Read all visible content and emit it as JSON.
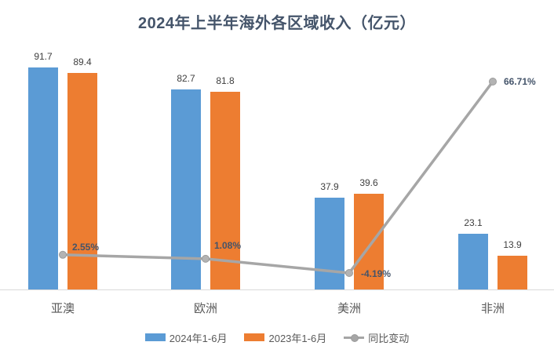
{
  "title": "2024年上半年海外各区域收入（亿元）",
  "chart_data": {
    "type": "bar",
    "subtype": "grouped-bars-with-line",
    "title": "2024年上半年海外各区域收入（亿元）",
    "categories": [
      "亚澳",
      "欧洲",
      "美洲",
      "非洲"
    ],
    "series": [
      {
        "name": "2024年1-6月",
        "type": "bar",
        "color": "#5B9BD5",
        "values": [
          91.7,
          82.7,
          37.9,
          23.1
        ]
      },
      {
        "name": "2023年1-6月",
        "type": "bar",
        "color": "#ED7D31",
        "values": [
          89.4,
          81.8,
          39.6,
          13.9
        ]
      },
      {
        "name": "同比变动",
        "type": "line",
        "color": "#A6A6A6",
        "axis": "secondary",
        "values": [
          2.55,
          1.08,
          -4.19,
          66.71
        ],
        "labels": [
          "2.55%",
          "1.08%",
          "-4.19%",
          "66.71%"
        ]
      }
    ],
    "primary_axis": {
      "min": 0,
      "max": 100,
      "tick_labels_visible": false
    },
    "secondary_axis": {
      "unit": "%",
      "tick_labels_visible": false
    },
    "legend_position": "bottom",
    "grid": false,
    "colors": {
      "title": "#44546A",
      "bar_value_label": "#3f3f3f",
      "pct_label": "#44546A",
      "category_label": "#595959",
      "axis_line": "#D9D9D9",
      "marker_fill": "#b3b3b3",
      "marker_stroke": "#9c9c9c"
    }
  }
}
